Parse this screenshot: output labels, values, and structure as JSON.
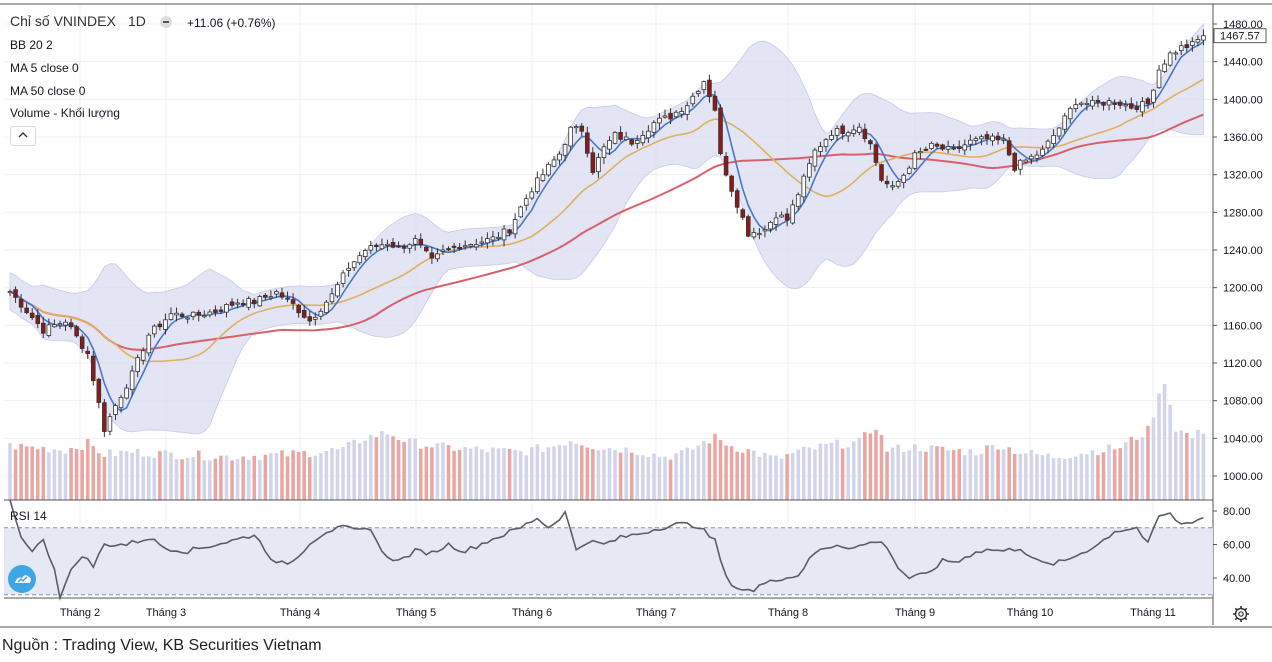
{
  "header": {
    "title": "Chỉ số VNINDEX",
    "timeframe": "1D",
    "change": "+11.06 (+0.76%)",
    "indicators": [
      "BB 20 2",
      "MA 5 close 0",
      "MA 50 close 0",
      "Volume - Khối lượng"
    ]
  },
  "rsi_label": "RSI 14",
  "footer": "Nguồn : Trading View, KB Securities Vietnam",
  "last_price_label": "1467.57",
  "colors": {
    "up": "#ffffff",
    "down": "#8b1a1a",
    "candle_outline": "#333333",
    "bb_fill": "#dadcf0",
    "ma5": "#4a78c8",
    "ma50": "#d9606a",
    "bb_basis": "#e0b060",
    "vol_up": "#d2d4ea",
    "vol_down": "#e8a7a3",
    "rsi_line": "#5a5d68",
    "rsi_band": "#e3e5f2",
    "logo": "#3fa6e6"
  },
  "icons": [
    "collapse-chevron-icon",
    "settings-gear-icon",
    "tradingview-logo-icon",
    "minus-icon"
  ],
  "chart_data": [
    {
      "type": "candlestick",
      "title": "Chỉ số VNINDEX 1D",
      "x_tick_labels": [
        "Tháng 2",
        "Tháng 3",
        "Tháng 4",
        "Tháng 5",
        "Tháng 6",
        "Tháng 7",
        "Tháng 8",
        "Tháng 9",
        "Tháng 10",
        "Tháng 11"
      ],
      "y_tick_labels": [
        1000,
        1040,
        1080,
        1120,
        1160,
        1200,
        1240,
        1280,
        1320,
        1360,
        1400,
        1440,
        1480
      ],
      "ylim": [
        980,
        1492
      ],
      "grid": true,
      "last_value": 1467.57,
      "close_anchors": [
        [
          0,
          1196
        ],
        [
          6,
          1155
        ],
        [
          10,
          1165
        ],
        [
          14,
          1130
        ],
        [
          17,
          1050
        ],
        [
          19,
          1075
        ],
        [
          22,
          1108
        ],
        [
          25,
          1150
        ],
        [
          29,
          1172
        ],
        [
          33,
          1170
        ],
        [
          37,
          1175
        ],
        [
          41,
          1185
        ],
        [
          44,
          1185
        ],
        [
          48,
          1195
        ],
        [
          51,
          1182
        ],
        [
          54,
          1165
        ],
        [
          58,
          1192
        ],
        [
          61,
          1222
        ],
        [
          64,
          1240
        ],
        [
          68,
          1248
        ],
        [
          70,
          1242
        ],
        [
          73,
          1250
        ],
        [
          76,
          1228
        ],
        [
          78,
          1238
        ],
        [
          81,
          1245
        ],
        [
          84,
          1248
        ],
        [
          87,
          1252
        ],
        [
          90,
          1262
        ],
        [
          92,
          1285
        ],
        [
          94,
          1305
        ],
        [
          97,
          1328
        ],
        [
          99,
          1342
        ],
        [
          101,
          1368
        ],
        [
          103,
          1368
        ],
        [
          105,
          1325
        ],
        [
          107,
          1348
        ],
        [
          109,
          1362
        ],
        [
          112,
          1355
        ],
        [
          116,
          1375
        ],
        [
          119,
          1382
        ],
        [
          122,
          1395
        ],
        [
          125,
          1420
        ],
        [
          127,
          1390
        ],
        [
          128,
          1340
        ],
        [
          130,
          1305
        ],
        [
          133,
          1258
        ],
        [
          136,
          1262
        ],
        [
          138,
          1278
        ],
        [
          140,
          1272
        ],
        [
          142,
          1300
        ],
        [
          145,
          1345
        ],
        [
          148,
          1365
        ],
        [
          151,
          1368
        ],
        [
          153,
          1372
        ],
        [
          155,
          1352
        ],
        [
          157,
          1315
        ],
        [
          159,
          1305
        ],
        [
          161,
          1320
        ],
        [
          163,
          1340
        ],
        [
          166,
          1350
        ],
        [
          170,
          1345
        ],
        [
          173,
          1355
        ],
        [
          176,
          1358
        ],
        [
          179,
          1355
        ],
        [
          181,
          1328
        ],
        [
          183,
          1335
        ],
        [
          186,
          1345
        ],
        [
          189,
          1370
        ],
        [
          192,
          1398
        ],
        [
          195,
          1395
        ],
        [
          199,
          1398
        ],
        [
          202,
          1392
        ],
        [
          205,
          1395
        ],
        [
          207,
          1432
        ],
        [
          209,
          1448
        ],
        [
          211,
          1455
        ],
        [
          213,
          1458
        ],
        [
          215,
          1467.57
        ]
      ]
    },
    {
      "type": "bar",
      "title": "Volume - Khối lượng",
      "note": "relative volume per session, unscaled axis",
      "volume_anchors": [
        [
          0,
          0.45
        ],
        [
          10,
          0.42
        ],
        [
          14,
          0.47
        ],
        [
          17,
          0.38
        ],
        [
          22,
          0.4
        ],
        [
          30,
          0.38
        ],
        [
          40,
          0.36
        ],
        [
          50,
          0.38
        ],
        [
          60,
          0.42
        ],
        [
          64,
          0.52
        ],
        [
          68,
          0.56
        ],
        [
          72,
          0.48
        ],
        [
          78,
          0.44
        ],
        [
          84,
          0.42
        ],
        [
          92,
          0.4
        ],
        [
          98,
          0.45
        ],
        [
          101,
          0.5
        ],
        [
          106,
          0.44
        ],
        [
          112,
          0.42
        ],
        [
          118,
          0.36
        ],
        [
          122,
          0.4
        ],
        [
          125,
          0.48
        ],
        [
          127,
          0.52
        ],
        [
          130,
          0.45
        ],
        [
          134,
          0.4
        ],
        [
          138,
          0.34
        ],
        [
          142,
          0.4
        ],
        [
          148,
          0.46
        ],
        [
          153,
          0.48
        ],
        [
          156,
          0.62
        ],
        [
          158,
          0.42
        ],
        [
          163,
          0.44
        ],
        [
          168,
          0.42
        ],
        [
          174,
          0.4
        ],
        [
          178,
          0.46
        ],
        [
          182,
          0.4
        ],
        [
          188,
          0.36
        ],
        [
          194,
          0.4
        ],
        [
          200,
          0.44
        ],
        [
          205,
          0.58
        ],
        [
          208,
          1.0
        ],
        [
          210,
          0.6
        ],
        [
          213,
          0.52
        ],
        [
          215,
          0.58
        ]
      ],
      "down_days_pattern": "matches candle direction"
    },
    {
      "type": "line",
      "title": "RSI 14",
      "y_tick_labels": [
        40,
        60,
        80
      ],
      "ylim": [
        27,
        83
      ],
      "bands": [
        30,
        70
      ],
      "rsi_anchors": [
        [
          0,
          88
        ],
        [
          2,
          64
        ],
        [
          4,
          57
        ],
        [
          6,
          62
        ],
        [
          8,
          46
        ],
        [
          9,
          29
        ],
        [
          11,
          44
        ],
        [
          13,
          54
        ],
        [
          15,
          47
        ],
        [
          17,
          60
        ],
        [
          21,
          60
        ],
        [
          25,
          64
        ],
        [
          28,
          58
        ],
        [
          32,
          56
        ],
        [
          37,
          60
        ],
        [
          41,
          63
        ],
        [
          44,
          66
        ],
        [
          48,
          48
        ],
        [
          51,
          50
        ],
        [
          54,
          61
        ],
        [
          57,
          68
        ],
        [
          60,
          70
        ],
        [
          63,
          68
        ],
        [
          65,
          70
        ],
        [
          67,
          55
        ],
        [
          70,
          50
        ],
        [
          73,
          56
        ],
        [
          76,
          55
        ],
        [
          79,
          60
        ],
        [
          82,
          56
        ],
        [
          86,
          62
        ],
        [
          89,
          66
        ],
        [
          92,
          70
        ],
        [
          95,
          76
        ],
        [
          97,
          70
        ],
        [
          100,
          79
        ],
        [
          102,
          57
        ],
        [
          104,
          62
        ],
        [
          107,
          60
        ],
        [
          110,
          64
        ],
        [
          114,
          67
        ],
        [
          117,
          70
        ],
        [
          120,
          72
        ],
        [
          122,
          72
        ],
        [
          124,
          71
        ],
        [
          127,
          62
        ],
        [
          129,
          40
        ],
        [
          131,
          34
        ],
        [
          134,
          32
        ],
        [
          137,
          40
        ],
        [
          139,
          39
        ],
        [
          142,
          42
        ],
        [
          145,
          55
        ],
        [
          147,
          58
        ],
        [
          149,
          60
        ],
        [
          152,
          58
        ],
        [
          156,
          62
        ],
        [
          158,
          59
        ],
        [
          160,
          46
        ],
        [
          162,
          40
        ],
        [
          165,
          42
        ],
        [
          168,
          50
        ],
        [
          171,
          50
        ],
        [
          174,
          56
        ],
        [
          177,
          57
        ],
        [
          179,
          56
        ],
        [
          182,
          58
        ],
        [
          185,
          50
        ],
        [
          187,
          48
        ],
        [
          190,
          50
        ],
        [
          193,
          55
        ],
        [
          196,
          60
        ],
        [
          199,
          68
        ],
        [
          203,
          70
        ],
        [
          205,
          60
        ],
        [
          207,
          77
        ],
        [
          209,
          78
        ],
        [
          211,
          72
        ],
        [
          213,
          74
        ],
        [
          215,
          76
        ]
      ]
    }
  ]
}
